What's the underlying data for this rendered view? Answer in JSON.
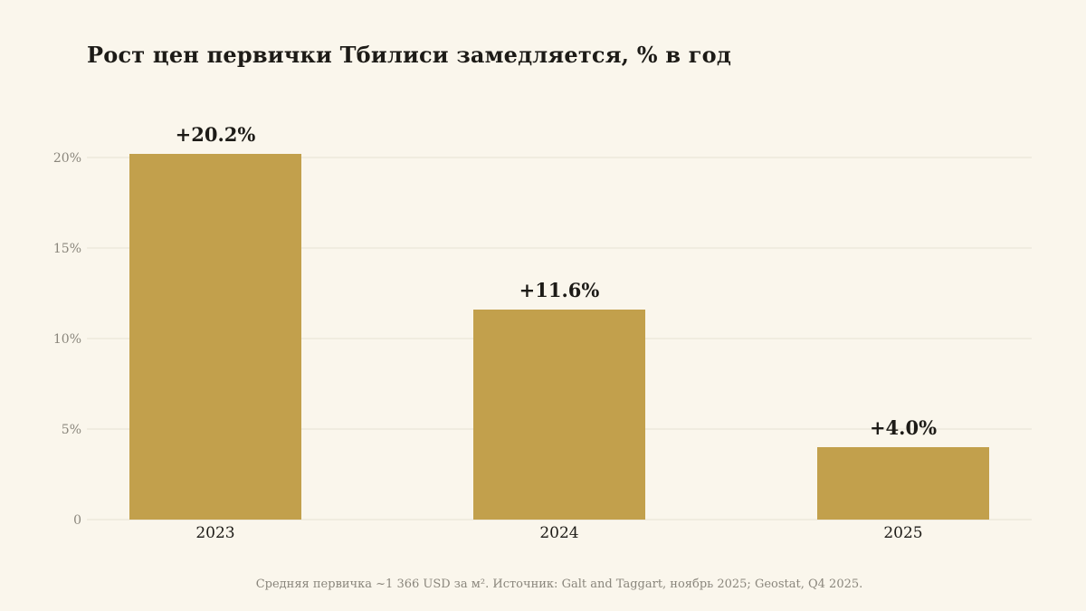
{
  "title": "Рост цен первички Тбилиси замедляется, % в год",
  "footnote": "Средняя первичка ~1 366 USD за м². Источник: Galt and Taggart, ноябрь 2025; Geostat, Q4 2025.",
  "colors": {
    "background": "#faf6ec",
    "bar": "#c2a04c",
    "grid": "#e6e1d4",
    "tick_text": "#8a867c",
    "label_text": "#1d1b17"
  },
  "chart_data": {
    "type": "bar",
    "categories": [
      "2023",
      "2024",
      "2025"
    ],
    "values": [
      20.2,
      11.6,
      4.0
    ],
    "data_labels": [
      "+20.2%",
      "+11.6%",
      "+4.0%"
    ],
    "title": "Рост цен первички Тбилиси замедляется, % в год",
    "xlabel": "",
    "ylabel": "",
    "ylim": [
      0,
      20
    ],
    "yticks": [
      0,
      5,
      10,
      15,
      20
    ],
    "ytick_labels": [
      "0",
      "5%",
      "10%",
      "15%",
      "20%"
    ],
    "grid": true,
    "legend": "none"
  }
}
